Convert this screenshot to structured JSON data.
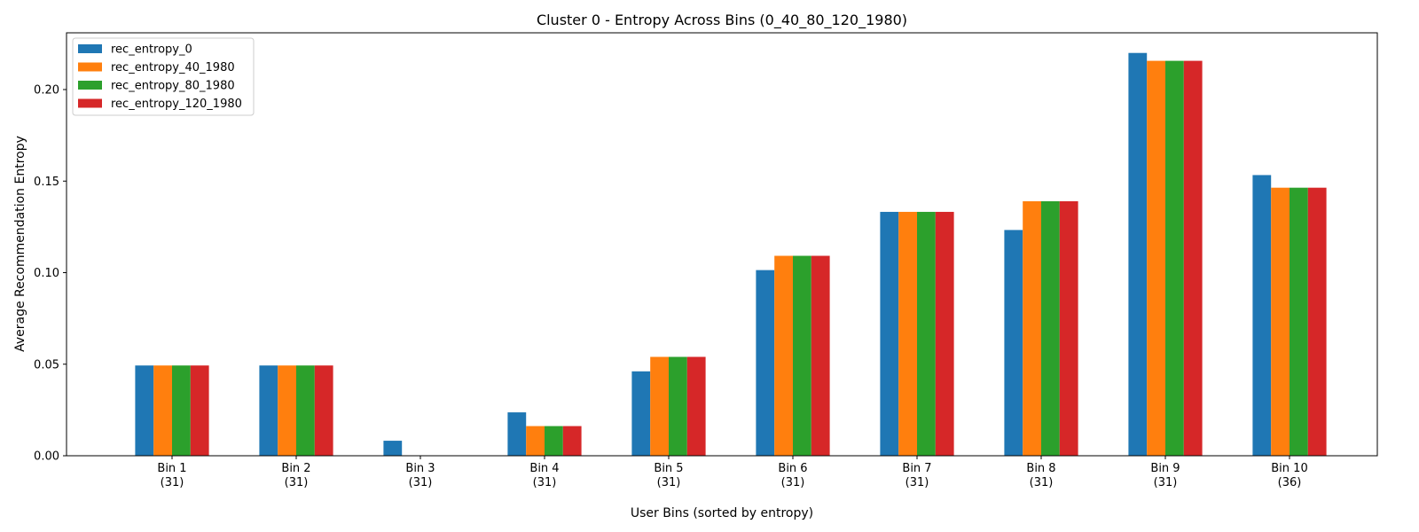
{
  "chart_data": {
    "type": "bar",
    "title": "Cluster 0 - Entropy Across Bins (0_40_80_120_1980)",
    "xlabel": "User Bins (sorted by entropy)",
    "ylabel": "Average Recommendation Entropy",
    "categories": [
      [
        "Bin 1",
        "(31)"
      ],
      [
        "Bin 2",
        "(31)"
      ],
      [
        "Bin 3",
        "(31)"
      ],
      [
        "Bin 4",
        "(31)"
      ],
      [
        "Bin 5",
        "(31)"
      ],
      [
        "Bin 6",
        "(31)"
      ],
      [
        "Bin 7",
        "(31)"
      ],
      [
        "Bin 8",
        "(31)"
      ],
      [
        "Bin 9",
        "(31)"
      ],
      [
        "Bin 10",
        "(36)"
      ]
    ],
    "series": [
      {
        "name": "rec_entropy_0",
        "color": "#1f77b4",
        "values": [
          0.0493,
          0.0493,
          0.0082,
          0.0237,
          0.0461,
          0.1014,
          0.1332,
          0.1233,
          0.22,
          0.1533
        ]
      },
      {
        "name": "rec_entropy_40_1980",
        "color": "#ff7f0e",
        "values": [
          0.0493,
          0.0493,
          0.0,
          0.0162,
          0.054,
          0.1092,
          0.1332,
          0.139,
          0.2157,
          0.1464
        ]
      },
      {
        "name": "rec_entropy_80_1980",
        "color": "#2ca02c",
        "values": [
          0.0493,
          0.0493,
          0.0,
          0.0162,
          0.054,
          0.1092,
          0.1332,
          0.139,
          0.2157,
          0.1464
        ]
      },
      {
        "name": "rec_entropy_120_1980",
        "color": "#d62728",
        "values": [
          0.0493,
          0.0493,
          0.0,
          0.0162,
          0.054,
          0.1092,
          0.1332,
          0.139,
          0.2157,
          0.1464
        ]
      }
    ],
    "ylim": [
      0,
      0.231
    ],
    "yticks": [
      0.0,
      0.05,
      0.1,
      0.15,
      0.2
    ],
    "ytick_labels": [
      "0.00",
      "0.05",
      "0.10",
      "0.15",
      "0.20"
    ],
    "grid": false,
    "legend_position": "upper-left"
  }
}
